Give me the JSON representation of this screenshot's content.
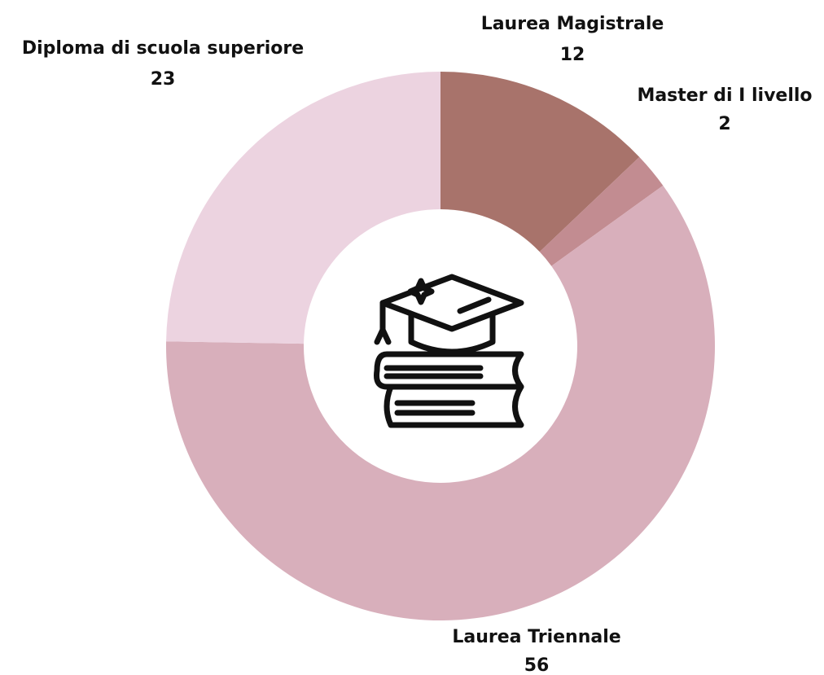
{
  "chart_data": {
    "type": "donut",
    "categories": [
      "Laurea Magistrale",
      "Master di I livello",
      "Laurea Triennale",
      "Diploma di scuola superiore"
    ],
    "values": [
      12,
      2,
      56,
      23
    ],
    "colors": [
      "#a8736b",
      "#c28c91",
      "#d8afbb",
      "#ecd3e0"
    ]
  }
}
